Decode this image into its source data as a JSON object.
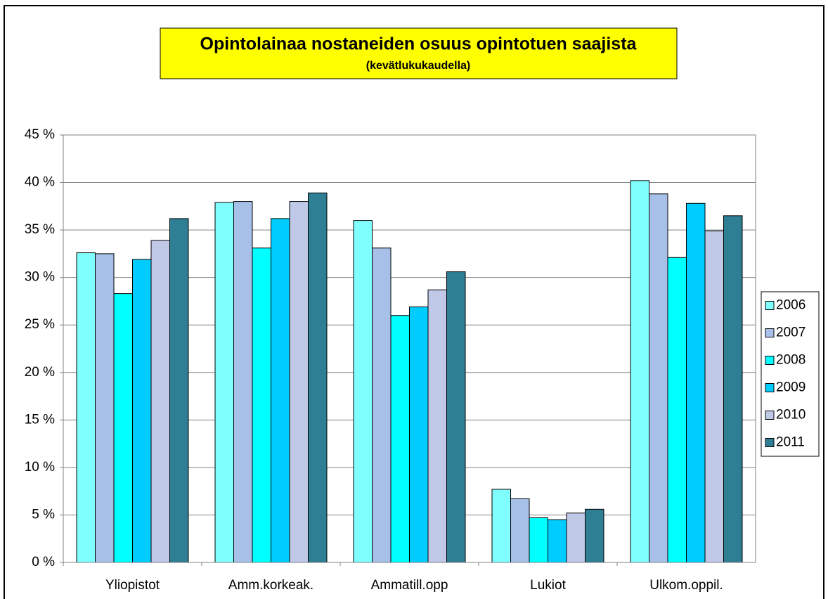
{
  "chart_data": {
    "type": "bar",
    "title": "Opintolainaa nostaneiden osuus opintotuen saajista",
    "subtitle": "(kevätlukukaudella)",
    "categories": [
      "Yliopistot",
      "Amm.korkeak.",
      "Ammatill.opp",
      "Lukiot",
      "Ulkom.oppil."
    ],
    "series": [
      {
        "name": "2006",
        "color": "#80ffff",
        "values": [
          32.6,
          37.9,
          36.0,
          7.7,
          40.2
        ]
      },
      {
        "name": "2007",
        "color": "#a6c0e8",
        "values": [
          32.5,
          38.0,
          33.1,
          6.7,
          38.8
        ]
      },
      {
        "name": "2008",
        "color": "#00ffff",
        "values": [
          28.3,
          33.1,
          26.0,
          4.7,
          32.1
        ]
      },
      {
        "name": "2009",
        "color": "#00ccff",
        "values": [
          31.9,
          36.2,
          26.9,
          4.5,
          37.8
        ]
      },
      {
        "name": "2010",
        "color": "#c0c8e8",
        "values": [
          33.9,
          38.0,
          28.7,
          5.2,
          34.9
        ]
      },
      {
        "name": "2011",
        "color": "#2e7e94",
        "values": [
          36.2,
          38.9,
          30.6,
          5.6,
          36.5
        ]
      }
    ],
    "ylim": [
      0,
      45
    ],
    "yticks": [
      {
        "value": 0,
        "label": "0 %"
      },
      {
        "value": 5,
        "label": "5 %"
      },
      {
        "value": 10,
        "label": "10 %"
      },
      {
        "value": 15,
        "label": "15 %"
      },
      {
        "value": 20,
        "label": "20 %"
      },
      {
        "value": 25,
        "label": "25 %"
      },
      {
        "value": 30,
        "label": "30 %"
      },
      {
        "value": 35,
        "label": "35 %"
      },
      {
        "value": 40,
        "label": "40 %"
      },
      {
        "value": 45,
        "label": "45 %"
      }
    ],
    "grid": true,
    "legend": "right"
  }
}
